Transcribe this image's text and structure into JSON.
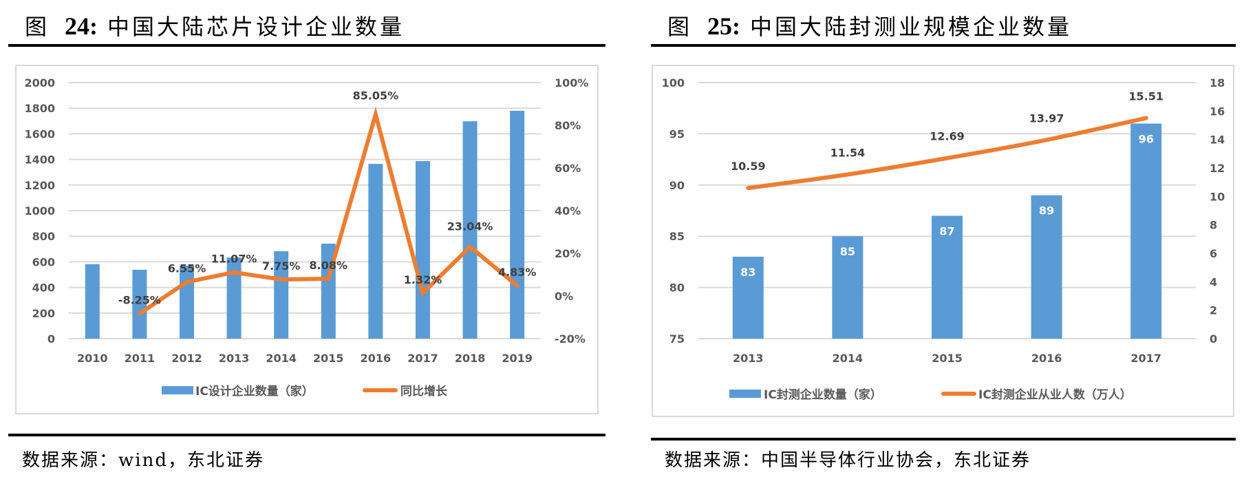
{
  "figures": [
    {
      "title_prefix": "图",
      "title_number": "24:",
      "title_text": "中国大陆芯片设计企业数量",
      "source": "数据来源：wind，东北证券"
    },
    {
      "title_prefix": "图",
      "title_number": "25:",
      "title_text": "中国大陆封测业规模企业数量",
      "source": "数据来源：中国半导体行业协会，东北证券"
    }
  ],
  "colors": {
    "bar": "#5B9BD5",
    "line": "#ED7D31",
    "grid": "#D9D9D9",
    "axis_text": "#595959",
    "label_text": "#404040"
  },
  "chart_data": [
    {
      "type": "bar+line",
      "title": "中国大陆芯片设计企业数量",
      "categories": [
        "2010",
        "2011",
        "2012",
        "2013",
        "2014",
        "2015",
        "2016",
        "2017",
        "2018",
        "2019"
      ],
      "series": [
        {
          "name": "IC设计企业数量（家）",
          "type": "bar",
          "axis": "left",
          "values": [
            582,
            538,
            570,
            634,
            683,
            742,
            1365,
            1387,
            1698,
            1780
          ]
        },
        {
          "name": "同比增长",
          "type": "line",
          "axis": "right",
          "values": [
            null,
            -8.25,
            6.55,
            11.07,
            7.75,
            8.08,
            85.05,
            1.32,
            23.04,
            4.83
          ],
          "labels": [
            "",
            "-8.25%",
            "6.55%",
            "11.07%",
            "7.75%",
            "8.08%",
            "85.05%",
            "1.32%",
            "23.04%",
            "4.83%"
          ]
        }
      ],
      "left_axis": {
        "ylim": [
          0,
          2000
        ],
        "ticks": [
          "0",
          "200",
          "400",
          "600",
          "800",
          "1000",
          "1200",
          "1400",
          "1600",
          "1800",
          "2000"
        ]
      },
      "right_axis": {
        "ylim": [
          -20,
          100
        ],
        "ticks": [
          "-20%",
          "0%",
          "20%",
          "40%",
          "60%",
          "80%",
          "100%"
        ]
      },
      "grid": true,
      "legend": "bottom",
      "legend_labels": [
        "IC设计企业数量（家）",
        "同比增长"
      ]
    },
    {
      "type": "bar+line",
      "title": "中国大陆封测业规模企业数量",
      "categories": [
        "2013",
        "2014",
        "2015",
        "2016",
        "2017"
      ],
      "series": [
        {
          "name": "IC封测企业数量（家）",
          "type": "bar",
          "axis": "left",
          "values": [
            83,
            85,
            87,
            89,
            96
          ],
          "labels": [
            "83",
            "85",
            "87",
            "89",
            "96"
          ]
        },
        {
          "name": "IC封测企业从业人数（万人）",
          "type": "line",
          "axis": "right",
          "values": [
            10.59,
            11.54,
            12.69,
            13.97,
            15.51
          ],
          "labels": [
            "10.59",
            "11.54",
            "12.69",
            "13.97",
            "15.51"
          ]
        }
      ],
      "left_axis": {
        "ylim": [
          75,
          100
        ],
        "ticks": [
          "75",
          "80",
          "85",
          "90",
          "95",
          "100"
        ]
      },
      "right_axis": {
        "ylim": [
          0,
          18
        ],
        "ticks": [
          "0",
          "2",
          "4",
          "6",
          "8",
          "10",
          "12",
          "14",
          "16",
          "18"
        ]
      },
      "grid": true,
      "legend": "bottom",
      "legend_labels": [
        "IC封测企业数量（家）",
        "IC封测企业从业人数（万人）"
      ]
    }
  ]
}
